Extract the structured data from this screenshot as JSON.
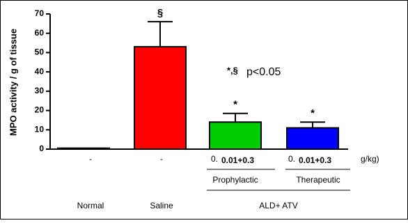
{
  "chart_data": {
    "type": "bar",
    "y_label": "MPO activity / g of tissue",
    "categories": [
      "Normal",
      "Saline",
      "Prophylactic",
      "Therapeutic"
    ],
    "values": [
      0.5,
      53,
      14,
      11
    ],
    "errors": [
      null,
      13,
      4.5,
      3
    ],
    "colors": [
      "#000000",
      "#ff0000",
      "#00cc00",
      "#0000ff"
    ],
    "significance": [
      null,
      "§",
      "*",
      "*"
    ],
    "dose_labels": [
      [
        "-"
      ],
      [
        "-"
      ],
      [
        "0.",
        "0.01+0.3"
      ],
      [
        "0.",
        "0.01+0.3"
      ]
    ],
    "dose_unit": "g/kg)",
    "group_label": "ALD+ ATV",
    "note_symbols": "*,§",
    "note_text": "p<0.05",
    "ylim": [
      0,
      70
    ],
    "yticks": [
      0,
      10,
      20,
      30,
      40,
      50,
      60,
      70
    ]
  }
}
